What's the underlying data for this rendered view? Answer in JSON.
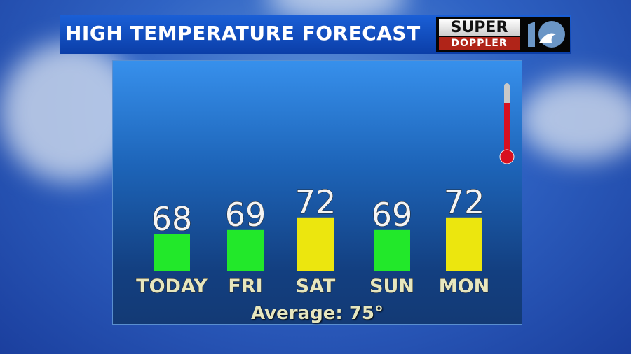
{
  "header": {
    "title": "HIGH TEMPERATURE FORECAST"
  },
  "logo": {
    "line1": "SUPER",
    "line2": "DOPPLER",
    "channel": "10"
  },
  "chart_data": {
    "type": "bar",
    "categories": [
      "TODAY",
      "FRI",
      "SAT",
      "SUN",
      "MON"
    ],
    "values": [
      68,
      69,
      72,
      69,
      72
    ],
    "bar_colors": [
      "#22e82a",
      "#22e82a",
      "#ece60e",
      "#22e82a",
      "#ece60e"
    ],
    "title": "HIGH TEMPERATURE FORECAST",
    "annotation": "Average: 75°"
  },
  "icons": {
    "thermometer": "thermometer-icon"
  }
}
